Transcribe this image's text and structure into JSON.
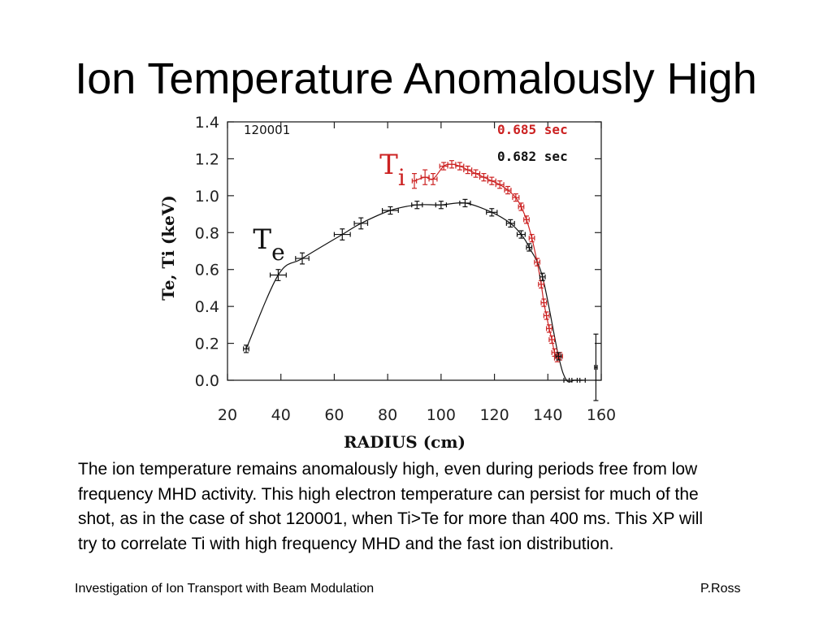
{
  "slide": {
    "title": "Ion Temperature Anomalously High",
    "body": "The ion temperature remains anomalously high, even during periods free from low frequency MHD activity.  This high electron temperature can persist for much of the shot, as in the case of shot 120001, when Ti>Te for more than 400 ms.  This XP will try to correlate Ti with high frequency MHD and the fast ion distribution.",
    "footer_left": "Investigation of Ion Transport with Beam Modulation",
    "footer_right": "P.Ross"
  },
  "colors": {
    "ti": "#cc2222",
    "te": "#111111"
  },
  "chart_data": {
    "type": "scatter",
    "shot_label": "120001",
    "xlabel": "RADIUS (cm)",
    "ylabel": "Te, Ti (keV)",
    "xlim": [
      20,
      160
    ],
    "ylim": [
      0.0,
      1.4
    ],
    "x_ticks": [
      "20",
      "40",
      "60",
      "80",
      "100",
      "120",
      "140",
      "160"
    ],
    "y_ticks": [
      "0.0",
      "0.2",
      "0.4",
      "0.6",
      "0.8",
      "1.0",
      "1.2",
      "1.4"
    ],
    "series": [
      {
        "name": "Ti",
        "legend": "0.685 sec",
        "color": "#cc2222",
        "points": [
          {
            "x": 90,
            "y": 1.08,
            "xerr": 0.8,
            "yerr": 0.04
          },
          {
            "x": 94,
            "y": 1.1,
            "xerr": 1.5,
            "yerr": 0.04
          },
          {
            "x": 97,
            "y": 1.09,
            "xerr": 1.5,
            "yerr": 0.03
          },
          {
            "x": 101,
            "y": 1.16,
            "xerr": 1.5,
            "yerr": 0.02
          },
          {
            "x": 104,
            "y": 1.17,
            "xerr": 1.5,
            "yerr": 0.02
          },
          {
            "x": 107,
            "y": 1.16,
            "xerr": 1.5,
            "yerr": 0.02
          },
          {
            "x": 110,
            "y": 1.14,
            "xerr": 1.5,
            "yerr": 0.02
          },
          {
            "x": 113,
            "y": 1.12,
            "xerr": 1.5,
            "yerr": 0.02
          },
          {
            "x": 116,
            "y": 1.1,
            "xerr": 1.5,
            "yerr": 0.02
          },
          {
            "x": 119,
            "y": 1.08,
            "xerr": 1.5,
            "yerr": 0.02
          },
          {
            "x": 122,
            "y": 1.06,
            "xerr": 1.5,
            "yerr": 0.02
          },
          {
            "x": 125,
            "y": 1.03,
            "xerr": 1.2,
            "yerr": 0.02
          },
          {
            "x": 128,
            "y": 0.99,
            "xerr": 1.2,
            "yerr": 0.02
          },
          {
            "x": 130,
            "y": 0.94,
            "xerr": 1.0,
            "yerr": 0.02
          },
          {
            "x": 132,
            "y": 0.87,
            "xerr": 1.0,
            "yerr": 0.02
          },
          {
            "x": 134,
            "y": 0.77,
            "xerr": 1.0,
            "yerr": 0.02
          },
          {
            "x": 136,
            "y": 0.64,
            "xerr": 1.0,
            "yerr": 0.02
          },
          {
            "x": 137.5,
            "y": 0.52,
            "xerr": 1.0,
            "yerr": 0.02
          },
          {
            "x": 138.5,
            "y": 0.42,
            "xerr": 1.0,
            "yerr": 0.02
          },
          {
            "x": 139.5,
            "y": 0.35,
            "xerr": 1.0,
            "yerr": 0.02
          },
          {
            "x": 140.5,
            "y": 0.28,
            "xerr": 1.0,
            "yerr": 0.02
          },
          {
            "x": 141.5,
            "y": 0.22,
            "xerr": 1.0,
            "yerr": 0.02
          },
          {
            "x": 142.5,
            "y": 0.15,
            "xerr": 1.0,
            "yerr": 0.02
          },
          {
            "x": 143.5,
            "y": 0.12,
            "xerr": 1.0,
            "yerr": 0.02
          },
          {
            "x": 144.5,
            "y": 0.13,
            "xerr": 1.0,
            "yerr": 0.02
          }
        ]
      },
      {
        "name": "Te",
        "legend": "0.682 sec",
        "color": "#111111",
        "points": [
          {
            "x": 27,
            "y": 0.17,
            "xerr": 1.0,
            "yerr": 0.02
          },
          {
            "x": 39,
            "y": 0.57,
            "xerr": 3.0,
            "yerr": 0.03
          },
          {
            "x": 48,
            "y": 0.66,
            "xerr": 2.5,
            "yerr": 0.03
          },
          {
            "x": 63,
            "y": 0.79,
            "xerr": 3.0,
            "yerr": 0.03
          },
          {
            "x": 70,
            "y": 0.85,
            "xerr": 2.5,
            "yerr": 0.03
          },
          {
            "x": 81,
            "y": 0.92,
            "xerr": 3.0,
            "yerr": 0.02
          },
          {
            "x": 91,
            "y": 0.95,
            "xerr": 2.0,
            "yerr": 0.02
          },
          {
            "x": 100,
            "y": 0.95,
            "xerr": 2.0,
            "yerr": 0.02
          },
          {
            "x": 109,
            "y": 0.96,
            "xerr": 2.0,
            "yerr": 0.02
          },
          {
            "x": 119,
            "y": 0.91,
            "xerr": 2.0,
            "yerr": 0.02
          },
          {
            "x": 126,
            "y": 0.85,
            "xerr": 1.5,
            "yerr": 0.02
          },
          {
            "x": 130,
            "y": 0.79,
            "xerr": 1.5,
            "yerr": 0.02
          },
          {
            "x": 133,
            "y": 0.72,
            "xerr": 1.0,
            "yerr": 0.02
          },
          {
            "x": 138,
            "y": 0.56,
            "xerr": 1.0,
            "yerr": 0.02
          },
          {
            "x": 144,
            "y": 0.13,
            "xerr": 1.0,
            "yerr": 0.02
          },
          {
            "x": 147,
            "y": 0.0,
            "xerr": 1.0,
            "yerr": 0.0
          },
          {
            "x": 150,
            "y": 0.0,
            "xerr": 1.0,
            "yerr": 0.0
          },
          {
            "x": 153,
            "y": 0.0,
            "xerr": 1.0,
            "yerr": 0.0
          },
          {
            "x": 158,
            "y": 0.07,
            "xerr": 0.5,
            "yerr": 0.18
          }
        ]
      }
    ],
    "annotations": [
      {
        "text": "Ti",
        "main": "T",
        "sub": "i",
        "x": 94,
        "y": 1.1,
        "color": "#cc2222"
      },
      {
        "text": "Te",
        "main": "T",
        "sub": "e",
        "x": 46,
        "y": 0.67,
        "color": "#111111"
      }
    ]
  }
}
